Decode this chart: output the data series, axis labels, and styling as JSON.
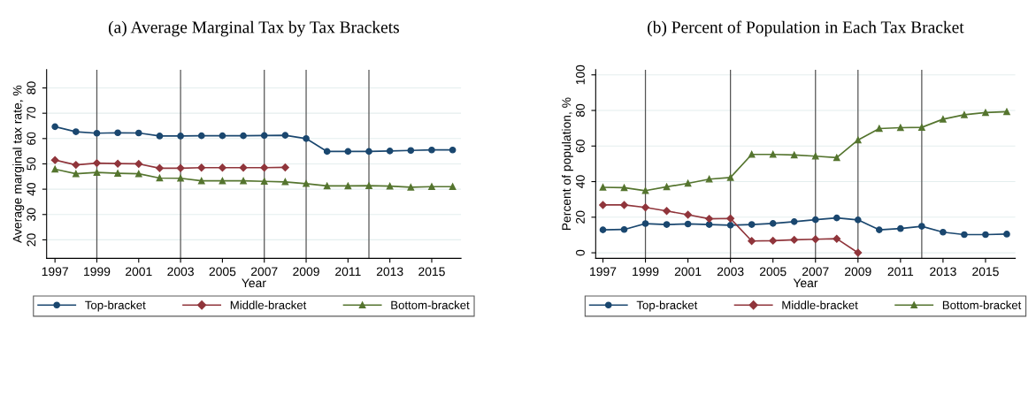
{
  "chart_data": [
    {
      "type": "line",
      "title": "(a) Average Marginal Tax by Tax Brackets",
      "xlabel": "Year",
      "ylabel": "Average marginal tax rate, %",
      "x": [
        1997,
        1998,
        1999,
        2000,
        2001,
        2002,
        2003,
        2004,
        2005,
        2006,
        2007,
        2008,
        2009,
        2010,
        2011,
        2012,
        2013,
        2014,
        2015,
        2016
      ],
      "xlim": [
        1996.6,
        2016.4
      ],
      "xticks": [
        1997,
        1999,
        2001,
        2003,
        2005,
        2007,
        2009,
        2011,
        2013,
        2015
      ],
      "ylim": [
        12.7,
        87.2
      ],
      "yticks": [
        20,
        30,
        40,
        50,
        60,
        70,
        80
      ],
      "grid": "y",
      "legend": "bottom",
      "ref_lines": [
        {
          "axis": "x",
          "value": 1999,
          "color": "#555555"
        },
        {
          "axis": "x",
          "value": 2003,
          "color": "#555555"
        },
        {
          "axis": "x",
          "value": 2007,
          "color": "#555555"
        },
        {
          "axis": "x",
          "value": 2009,
          "color": "#555555"
        },
        {
          "axis": "x",
          "value": 2012,
          "color": "#555555"
        }
      ],
      "series": [
        {
          "name": "Top-bracket",
          "color": "#1a476f",
          "marker": "circle",
          "values": [
            64.7,
            62.7,
            62.1,
            62.3,
            62.2,
            61.0,
            61.0,
            61.1,
            61.1,
            61.1,
            61.2,
            61.3,
            60.0,
            54.9,
            54.9,
            54.9,
            55.1,
            55.3,
            55.5,
            55.5
          ]
        },
        {
          "name": "Middle-bracket",
          "color": "#90353b",
          "marker": "diamond",
          "values": [
            51.5,
            49.6,
            50.3,
            50.1,
            50.0,
            48.3,
            48.3,
            48.5,
            48.5,
            48.5,
            48.5,
            48.6,
            null,
            null,
            null,
            null,
            null,
            null,
            null,
            null
          ]
        },
        {
          "name": "Bottom-bracket",
          "color": "#55752f",
          "marker": "triangle",
          "values": [
            47.9,
            46.1,
            46.6,
            46.3,
            46.1,
            44.4,
            44.3,
            43.3,
            43.3,
            43.3,
            43.1,
            42.9,
            42.2,
            41.3,
            41.3,
            41.4,
            41.2,
            40.8,
            41.0,
            41.0
          ]
        }
      ]
    },
    {
      "type": "line",
      "title": "(b) Percent of Population in Each Tax Bracket",
      "xlabel": "Year",
      "ylabel": "Percent of population, %",
      "x": [
        1997,
        1998,
        1999,
        2000,
        2001,
        2002,
        2003,
        2004,
        2005,
        2006,
        2007,
        2008,
        2009,
        2010,
        2011,
        2012,
        2013,
        2014,
        2015,
        2016
      ],
      "xlim": [
        1996.66,
        2016.4
      ],
      "xticks": [
        1997,
        1999,
        2001,
        2003,
        2005,
        2007,
        2009,
        2011,
        2013,
        2015
      ],
      "ylim": [
        -3.1,
        102.9
      ],
      "yticks": [
        0,
        20,
        40,
        60,
        80,
        100
      ],
      "grid": "y",
      "legend": "bottom",
      "ref_lines": [
        {
          "axis": "x",
          "value": 1999,
          "color": "#555555"
        },
        {
          "axis": "x",
          "value": 2003,
          "color": "#555555"
        },
        {
          "axis": "x",
          "value": 2007,
          "color": "#555555"
        },
        {
          "axis": "x",
          "value": 2009,
          "color": "#555555"
        },
        {
          "axis": "x",
          "value": 2012,
          "color": "#555555"
        }
      ],
      "series": [
        {
          "name": "Top-bracket",
          "color": "#1a476f",
          "marker": "circle",
          "values": [
            12.9,
            13.1,
            16.4,
            15.9,
            16.2,
            15.9,
            15.5,
            15.9,
            16.5,
            17.5,
            18.6,
            19.6,
            18.5,
            12.9,
            13.6,
            14.9,
            11.6,
            10.2,
            10.2,
            10.5
          ]
        },
        {
          "name": "Middle-bracket",
          "color": "#90353b",
          "marker": "diamond",
          "values": [
            26.9,
            26.9,
            25.5,
            23.5,
            21.4,
            19.1,
            19.3,
            6.6,
            6.8,
            7.3,
            7.6,
            7.9,
            0,
            null,
            null,
            null,
            null,
            null,
            null,
            null
          ]
        },
        {
          "name": "Bottom-bracket",
          "color": "#55752f",
          "marker": "triangle",
          "values": [
            36.8,
            36.6,
            34.9,
            37.1,
            39.0,
            41.4,
            42.3,
            55.3,
            55.3,
            55.0,
            54.3,
            53.5,
            63.4,
            69.8,
            70.3,
            70.5,
            75.1,
            77.6,
            78.8,
            79.3
          ]
        }
      ]
    }
  ]
}
